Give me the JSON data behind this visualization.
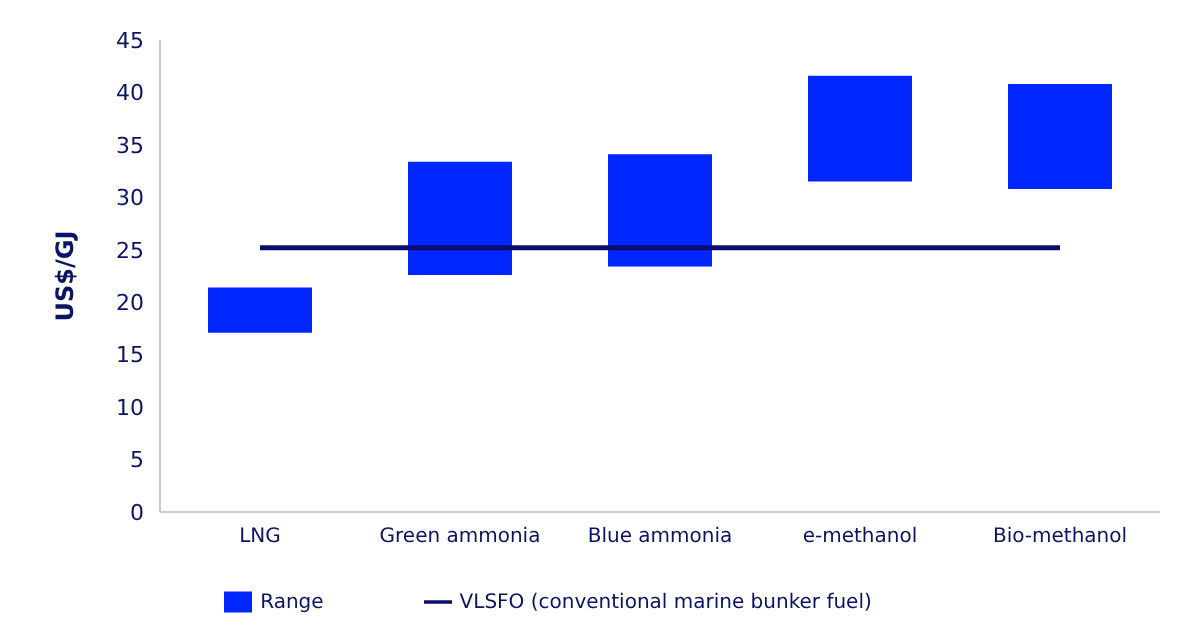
{
  "chart_data": {
    "type": "bar",
    "ylabel": "US$/GJ",
    "categories": [
      "LNG",
      "Green ammonia",
      "Blue ammonia",
      "e-methanol",
      "Bio-methanol"
    ],
    "series": [
      {
        "name": "Range",
        "color": "#0026ff",
        "base": [
          17.1,
          22.6,
          23.4,
          31.5,
          30.8
        ],
        "values": [
          4.3,
          10.8,
          10.7,
          10.1,
          10.0
        ]
      },
      {
        "name": "VLSFO (conventional marine bunker fuel)",
        "type": "line",
        "color": "#0a0f6b",
        "values": [
          25.2,
          25.2,
          25.2,
          25.2,
          25.2
        ]
      }
    ],
    "ylim": [
      0,
      45
    ],
    "yticks": [
      0,
      5,
      10,
      15,
      20,
      25,
      30,
      35,
      40,
      45
    ],
    "grid": false,
    "legend": "bottom"
  }
}
